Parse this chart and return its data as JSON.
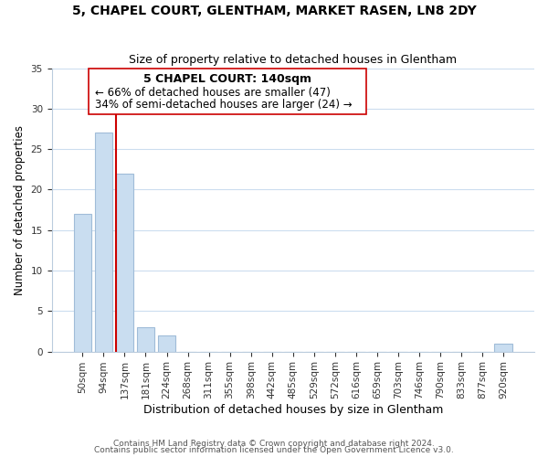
{
  "title1": "5, CHAPEL COURT, GLENTHAM, MARKET RASEN, LN8 2DY",
  "title2": "Size of property relative to detached houses in Glentham",
  "xlabel": "Distribution of detached houses by size in Glentham",
  "ylabel": "Number of detached properties",
  "bar_labels": [
    "50sqm",
    "94sqm",
    "137sqm",
    "181sqm",
    "224sqm",
    "268sqm",
    "311sqm",
    "355sqm",
    "398sqm",
    "442sqm",
    "485sqm",
    "529sqm",
    "572sqm",
    "616sqm",
    "659sqm",
    "703sqm",
    "746sqm",
    "790sqm",
    "833sqm",
    "877sqm",
    "920sqm"
  ],
  "bar_values": [
    17,
    27,
    22,
    3,
    2,
    0,
    0,
    0,
    0,
    0,
    0,
    0,
    0,
    0,
    0,
    0,
    0,
    0,
    0,
    0,
    1
  ],
  "bar_color": "#c9ddf0",
  "bar_edge_color": "#a0bcd8",
  "reference_line_color": "#cc0000",
  "annotation_line1": "5 CHAPEL COURT: 140sqm",
  "annotation_line2": "← 66% of detached houses are smaller (47)",
  "annotation_line3": "34% of semi-detached houses are larger (24) →",
  "ylim": [
    0,
    35
  ],
  "yticks": [
    0,
    5,
    10,
    15,
    20,
    25,
    30,
    35
  ],
  "footer1": "Contains HM Land Registry data © Crown copyright and database right 2024.",
  "footer2": "Contains public sector information licensed under the Open Government Licence v3.0.",
  "bg_color": "#ffffff",
  "grid_color": "#ccddef"
}
